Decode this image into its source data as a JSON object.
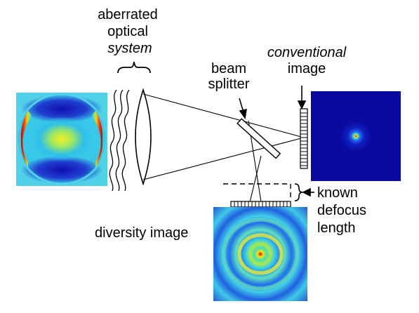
{
  "labels": {
    "aberrated_1": "aberrated",
    "aberrated_2": "optical",
    "aberrated_3": "system",
    "beam_1": "beam",
    "beam_2": "splitter",
    "conventional_1": "conventional",
    "conventional_2": "image",
    "known_1": "known",
    "known_2": "defocus",
    "known_3": "length",
    "diversity": "diversity image"
  },
  "colors": {
    "background": "#ffffff",
    "pupil_bg": "#4fd1e8",
    "image_bg": "#0a0aa0",
    "line": "#000000"
  },
  "icons": [
    "wavefront-icon",
    "lens-icon",
    "beam-splitter-icon",
    "detector-array-icon",
    "brace-icon",
    "arrow-icon"
  ]
}
